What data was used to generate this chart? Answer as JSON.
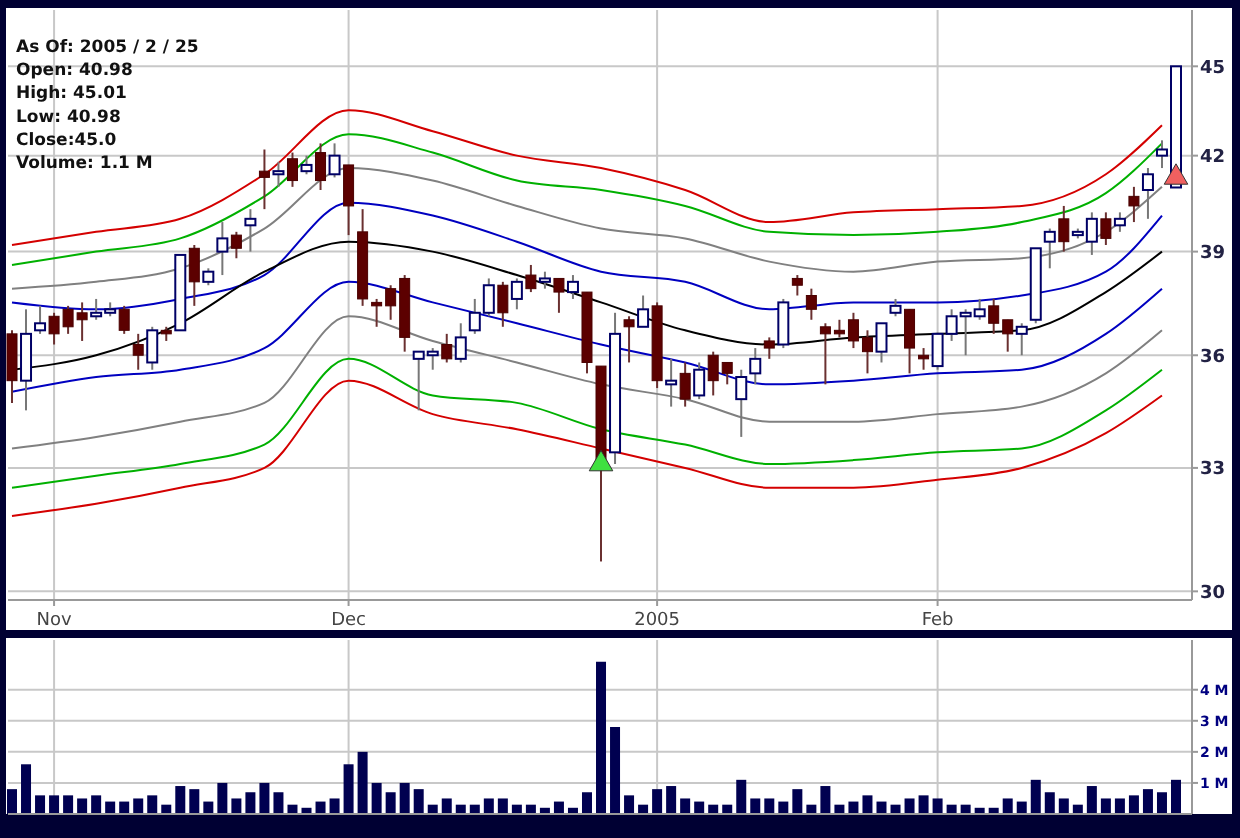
{
  "chart_data": [
    {
      "type": "candlestick",
      "annotations": [
        "As Of: 2005 / 2 / 25",
        "Open: 40.98",
        "High: 45.01",
        "Low: 40.98",
        "Close:45.0",
        "Volume: 1.1 M"
      ],
      "categories": [
        null,
        null,
        null,
        "Nov",
        null,
        null,
        null,
        null,
        null,
        null,
        null,
        null,
        null,
        null,
        null,
        null,
        null,
        null,
        null,
        null,
        null,
        null,
        null,
        null,
        "Dec",
        null,
        null,
        null,
        null,
        null,
        null,
        null,
        null,
        null,
        null,
        null,
        null,
        null,
        null,
        null,
        null,
        null,
        null,
        null,
        null,
        null,
        "2005",
        null,
        null,
        null,
        null,
        null,
        null,
        null,
        null,
        null,
        null,
        null,
        null,
        null,
        null,
        null,
        null,
        null,
        null,
        null,
        "Feb",
        null,
        null,
        null,
        null,
        null,
        null,
        null,
        null,
        null,
        null,
        null,
        null,
        null,
        null,
        null,
        null,
        null
      ],
      "ohlc": [
        [
          36.6,
          36.7,
          34.7,
          35.3
        ],
        [
          35.3,
          37.3,
          34.5,
          36.6
        ],
        [
          36.7,
          37.4,
          36.6,
          36.9
        ],
        [
          37.1,
          37.2,
          36.3,
          36.6
        ],
        [
          37.3,
          37.4,
          36.6,
          36.8
        ],
        [
          37.2,
          37.5,
          36.4,
          37.0
        ],
        [
          37.1,
          37.6,
          37.0,
          37.2
        ],
        [
          37.2,
          37.5,
          37.1,
          37.3
        ],
        [
          37.3,
          37.4,
          36.6,
          36.7
        ],
        [
          36.3,
          36.6,
          35.6,
          36.0
        ],
        [
          35.8,
          36.8,
          35.6,
          36.7
        ],
        [
          36.7,
          36.8,
          36.4,
          36.6
        ],
        [
          36.7,
          38.9,
          36.7,
          38.9
        ],
        [
          39.1,
          39.2,
          37.4,
          38.1
        ],
        [
          38.1,
          38.5,
          38.0,
          38.4
        ],
        [
          39.0,
          39.9,
          38.3,
          39.4
        ],
        [
          39.5,
          39.6,
          38.8,
          39.1
        ],
        [
          39.8,
          40.3,
          39.0,
          40.0
        ],
        [
          41.5,
          42.2,
          40.3,
          41.3
        ],
        [
          41.4,
          41.8,
          41.0,
          41.5
        ],
        [
          41.9,
          42.1,
          41.0,
          41.2
        ],
        [
          41.5,
          42.0,
          41.4,
          41.7
        ],
        [
          42.1,
          42.4,
          40.9,
          41.2
        ],
        [
          41.4,
          42.4,
          41.3,
          42.0
        ],
        [
          41.7,
          41.7,
          39.5,
          40.4
        ],
        [
          39.6,
          40.3,
          37.4,
          37.6
        ],
        [
          37.5,
          37.6,
          36.8,
          37.4
        ],
        [
          37.9,
          38.0,
          37.0,
          37.4
        ],
        [
          38.2,
          38.3,
          36.1,
          36.5
        ],
        [
          35.9,
          36.1,
          34.5,
          36.1
        ],
        [
          36.0,
          36.2,
          35.6,
          36.1
        ],
        [
          36.3,
          36.6,
          35.8,
          35.9
        ],
        [
          35.9,
          36.9,
          35.8,
          36.5
        ],
        [
          36.7,
          37.6,
          36.6,
          37.2
        ],
        [
          37.2,
          38.2,
          37.1,
          38.0
        ],
        [
          38.0,
          38.1,
          36.8,
          37.2
        ],
        [
          37.6,
          38.2,
          37.3,
          38.1
        ],
        [
          38.3,
          38.6,
          37.8,
          37.9
        ],
        [
          38.1,
          38.4,
          37.9,
          38.2
        ],
        [
          38.2,
          38.2,
          37.2,
          37.8
        ],
        [
          37.8,
          38.3,
          37.6,
          38.1
        ],
        [
          37.8,
          37.8,
          35.5,
          35.8
        ],
        [
          35.7,
          35.7,
          30.7,
          33.0
        ],
        [
          33.4,
          37.2,
          33.1,
          36.6
        ],
        [
          37.0,
          37.1,
          35.8,
          36.8
        ],
        [
          36.8,
          37.7,
          36.8,
          37.3
        ],
        [
          37.4,
          37.5,
          35.1,
          35.3
        ],
        [
          35.2,
          35.9,
          34.6,
          35.3
        ],
        [
          35.5,
          35.8,
          34.6,
          34.8
        ],
        [
          34.9,
          35.8,
          34.8,
          35.6
        ],
        [
          36.0,
          36.1,
          34.9,
          35.3
        ],
        [
          35.8,
          35.8,
          35.2,
          35.5
        ],
        [
          34.8,
          35.6,
          33.8,
          35.4
        ],
        [
          35.5,
          36.2,
          35.2,
          35.9
        ],
        [
          36.4,
          36.5,
          35.9,
          36.2
        ],
        [
          36.3,
          37.6,
          36.2,
          37.5
        ],
        [
          38.2,
          38.3,
          37.7,
          38.0
        ],
        [
          37.7,
          37.9,
          37.0,
          37.3
        ],
        [
          36.8,
          36.9,
          35.2,
          36.6
        ],
        [
          36.7,
          37.0,
          36.5,
          36.6
        ],
        [
          37.0,
          37.2,
          36.2,
          36.4
        ],
        [
          36.5,
          36.7,
          35.5,
          36.1
        ],
        [
          36.1,
          36.9,
          35.8,
          36.9
        ],
        [
          37.2,
          37.6,
          37.1,
          37.4
        ],
        [
          37.3,
          37.3,
          35.5,
          36.2
        ],
        [
          36.0,
          36.2,
          35.6,
          35.9
        ],
        [
          35.7,
          36.6,
          35.6,
          36.6
        ],
        [
          36.6,
          37.3,
          36.4,
          37.1
        ],
        [
          37.1,
          37.3,
          36.0,
          37.2
        ],
        [
          37.1,
          37.6,
          37.0,
          37.3
        ],
        [
          37.4,
          37.6,
          36.6,
          36.9
        ],
        [
          37.0,
          37.0,
          36.1,
          36.6
        ],
        [
          36.6,
          36.9,
          36.0,
          36.8
        ],
        [
          37.0,
          39.1,
          36.9,
          39.1
        ],
        [
          39.3,
          39.7,
          38.5,
          39.6
        ],
        [
          40.0,
          40.4,
          39.0,
          39.3
        ],
        [
          39.5,
          39.7,
          39.4,
          39.6
        ],
        [
          39.3,
          40.2,
          38.9,
          40.0
        ],
        [
          40.0,
          40.2,
          39.2,
          39.4
        ],
        [
          39.8,
          40.2,
          39.6,
          40.0
        ],
        [
          40.7,
          41.0,
          39.9,
          40.4
        ],
        [
          40.9,
          41.6,
          40.0,
          41.4
        ],
        [
          42.0,
          42.5,
          41.6,
          42.2
        ],
        [
          40.98,
          45.01,
          40.98,
          45.0
        ]
      ],
      "series": [
        {
          "type": "line",
          "color": "#d40000",
          "values": [
            39.2,
            null,
            null,
            null,
            null,
            null,
            39.6,
            null,
            null,
            null,
            null,
            null,
            40.0,
            null,
            null,
            null,
            null,
            null,
            41.4,
            null,
            null,
            null,
            null,
            null,
            43.5,
            null,
            null,
            null,
            null,
            null,
            42.8,
            null,
            null,
            null,
            null,
            null,
            42.0,
            null,
            null,
            null,
            null,
            null,
            41.6,
            null,
            null,
            null,
            null,
            null,
            40.9,
            null,
            null,
            null,
            null,
            null,
            39.9,
            null,
            null,
            null,
            null,
            null,
            40.2,
            null,
            null,
            null,
            null,
            null,
            40.3,
            null,
            null,
            null,
            null,
            null,
            40.4,
            null,
            null,
            null,
            null,
            null,
            41.4,
            null,
            null,
            null,
            43.0,
            null
          ]
        },
        {
          "type": "line",
          "color": "#00b000",
          "values": [
            38.6,
            null,
            null,
            null,
            null,
            null,
            39.0,
            null,
            null,
            null,
            null,
            null,
            39.4,
            null,
            null,
            null,
            null,
            null,
            40.7,
            null,
            null,
            null,
            null,
            null,
            42.7,
            null,
            null,
            null,
            null,
            null,
            42.1,
            null,
            null,
            null,
            null,
            null,
            41.2,
            null,
            null,
            null,
            null,
            null,
            40.9,
            null,
            null,
            null,
            null,
            null,
            40.4,
            null,
            null,
            null,
            null,
            null,
            39.6,
            null,
            null,
            null,
            null,
            null,
            39.5,
            null,
            null,
            null,
            null,
            null,
            39.6,
            null,
            null,
            null,
            null,
            null,
            39.9,
            null,
            null,
            null,
            null,
            null,
            40.8,
            null,
            null,
            null,
            42.4,
            null
          ]
        },
        {
          "type": "line",
          "color": "#808080",
          "values": [
            37.9,
            null,
            null,
            null,
            null,
            null,
            38.1,
            null,
            null,
            null,
            null,
            null,
            38.5,
            null,
            null,
            null,
            null,
            null,
            39.7,
            null,
            null,
            null,
            null,
            null,
            41.6,
            null,
            null,
            null,
            null,
            null,
            41.2,
            null,
            null,
            null,
            null,
            null,
            40.4,
            null,
            null,
            null,
            null,
            null,
            39.7,
            null,
            null,
            null,
            null,
            null,
            39.4,
            null,
            null,
            null,
            null,
            null,
            38.7,
            null,
            null,
            null,
            null,
            null,
            38.4,
            null,
            null,
            null,
            null,
            null,
            38.7,
            null,
            null,
            null,
            null,
            null,
            38.8,
            null,
            null,
            null,
            null,
            null,
            39.6,
            null,
            null,
            null,
            41.0,
            null
          ]
        },
        {
          "type": "line",
          "color": "#0000c0",
          "values": [
            37.5,
            null,
            null,
            null,
            null,
            null,
            37.3,
            null,
            null,
            null,
            null,
            null,
            37.6,
            null,
            null,
            null,
            null,
            null,
            38.3,
            null,
            null,
            null,
            null,
            null,
            40.5,
            null,
            null,
            null,
            null,
            null,
            40.1,
            null,
            null,
            null,
            null,
            null,
            39.3,
            null,
            null,
            null,
            null,
            null,
            38.4,
            null,
            null,
            null,
            null,
            null,
            38.1,
            null,
            null,
            null,
            null,
            null,
            37.3,
            null,
            null,
            null,
            null,
            null,
            37.5,
            null,
            null,
            null,
            null,
            null,
            37.5,
            null,
            null,
            null,
            null,
            null,
            37.7,
            null,
            null,
            null,
            null,
            null,
            38.4,
            null,
            null,
            null,
            40.1,
            null
          ]
        },
        {
          "type": "line",
          "color": "#000000",
          "values": [
            35.6,
            null,
            null,
            null,
            null,
            null,
            36.0,
            null,
            null,
            null,
            null,
            null,
            36.9,
            null,
            null,
            null,
            null,
            null,
            38.4,
            null,
            null,
            null,
            null,
            null,
            39.3,
            null,
            null,
            null,
            null,
            null,
            39.0,
            null,
            null,
            null,
            null,
            null,
            38.3,
            null,
            null,
            null,
            null,
            null,
            37.5,
            null,
            null,
            null,
            null,
            null,
            36.7,
            null,
            null,
            null,
            null,
            null,
            36.3,
            null,
            null,
            null,
            null,
            null,
            36.5,
            null,
            null,
            null,
            null,
            null,
            36.6,
            null,
            null,
            null,
            null,
            null,
            36.7,
            null,
            null,
            null,
            null,
            null,
            37.8,
            null,
            null,
            null,
            39.0,
            null
          ]
        },
        {
          "type": "line",
          "color": "#0000c0",
          "values": [
            35.0,
            null,
            null,
            null,
            null,
            null,
            35.4,
            null,
            null,
            null,
            null,
            null,
            35.6,
            null,
            null,
            null,
            null,
            null,
            36.2,
            null,
            null,
            null,
            null,
            null,
            38.1,
            null,
            null,
            null,
            null,
            null,
            37.5,
            null,
            null,
            null,
            null,
            null,
            36.9,
            null,
            null,
            null,
            null,
            null,
            36.3,
            null,
            null,
            null,
            null,
            null,
            35.8,
            null,
            null,
            null,
            null,
            null,
            35.2,
            null,
            null,
            null,
            null,
            null,
            35.3,
            null,
            null,
            null,
            null,
            null,
            35.5,
            null,
            null,
            null,
            null,
            null,
            35.6,
            null,
            null,
            null,
            null,
            null,
            36.6,
            null,
            null,
            null,
            37.9,
            null
          ]
        },
        {
          "type": "line",
          "color": "#808080",
          "values": [
            33.5,
            null,
            null,
            null,
            null,
            null,
            33.8,
            null,
            null,
            null,
            null,
            null,
            34.2,
            null,
            null,
            null,
            null,
            null,
            34.7,
            null,
            null,
            null,
            null,
            null,
            37.1,
            null,
            null,
            null,
            null,
            null,
            36.4,
            null,
            null,
            null,
            null,
            null,
            35.8,
            null,
            null,
            null,
            null,
            null,
            35.2,
            null,
            null,
            null,
            null,
            null,
            34.8,
            null,
            null,
            null,
            null,
            null,
            34.2,
            null,
            null,
            null,
            null,
            null,
            34.2,
            null,
            null,
            null,
            null,
            null,
            34.4,
            null,
            null,
            null,
            null,
            null,
            34.6,
            null,
            null,
            null,
            null,
            null,
            35.5,
            null,
            null,
            null,
            36.7,
            null
          ]
        },
        {
          "type": "line",
          "color": "#00b000",
          "values": [
            32.5,
            null,
            null,
            null,
            null,
            null,
            32.8,
            null,
            null,
            null,
            null,
            null,
            33.1,
            null,
            null,
            null,
            null,
            null,
            33.6,
            null,
            null,
            null,
            null,
            null,
            35.9,
            null,
            null,
            null,
            null,
            null,
            34.9,
            null,
            null,
            null,
            null,
            null,
            34.7,
            null,
            null,
            null,
            null,
            null,
            34.0,
            null,
            null,
            null,
            null,
            null,
            33.6,
            null,
            null,
            null,
            null,
            null,
            33.1,
            null,
            null,
            null,
            null,
            null,
            33.2,
            null,
            null,
            null,
            null,
            null,
            33.4,
            null,
            null,
            null,
            null,
            null,
            33.5,
            null,
            null,
            null,
            null,
            null,
            34.5,
            null,
            null,
            null,
            35.6,
            null
          ]
        },
        {
          "type": "line",
          "color": "#d40000",
          "values": [
            31.8,
            null,
            null,
            null,
            null,
            null,
            32.1,
            null,
            null,
            null,
            null,
            null,
            32.5,
            null,
            null,
            null,
            null,
            null,
            33.0,
            null,
            null,
            null,
            null,
            null,
            35.3,
            null,
            null,
            null,
            null,
            null,
            34.4,
            null,
            null,
            null,
            null,
            null,
            34.0,
            null,
            null,
            null,
            null,
            null,
            33.5,
            null,
            null,
            null,
            null,
            null,
            33.0,
            null,
            null,
            null,
            null,
            null,
            32.5,
            null,
            null,
            null,
            null,
            null,
            32.5,
            null,
            null,
            null,
            null,
            null,
            32.7,
            null,
            null,
            null,
            null,
            null,
            33.0,
            null,
            null,
            null,
            null,
            null,
            33.9,
            null,
            null,
            null,
            34.9,
            null
          ]
        },
        {
          "type": "scatter",
          "marker": "triangle",
          "color": "#40e040",
          "values": [
            null,
            null,
            null,
            null,
            null,
            null,
            null,
            null,
            null,
            null,
            null,
            null,
            null,
            null,
            null,
            null,
            null,
            null,
            null,
            null,
            null,
            null,
            null,
            null,
            null,
            null,
            null,
            null,
            null,
            null,
            null,
            null,
            null,
            null,
            null,
            null,
            null,
            null,
            null,
            null,
            null,
            null,
            33.1,
            null,
            null,
            null,
            null,
            null,
            null,
            null,
            null,
            null,
            null,
            null,
            null,
            null,
            null,
            null,
            null,
            null,
            null,
            null,
            null,
            null,
            null,
            null,
            null,
            null,
            null,
            null,
            null,
            null,
            null,
            null,
            null,
            null,
            null,
            null,
            null,
            null,
            null,
            null,
            null,
            null
          ]
        },
        {
          "type": "scatter",
          "marker": "triangle",
          "color": "#f06060",
          "values": [
            null,
            null,
            null,
            null,
            null,
            null,
            null,
            null,
            null,
            null,
            null,
            null,
            null,
            null,
            null,
            null,
            null,
            null,
            null,
            null,
            null,
            null,
            null,
            null,
            null,
            null,
            null,
            null,
            null,
            null,
            null,
            null,
            null,
            null,
            null,
            null,
            null,
            null,
            null,
            null,
            null,
            null,
            null,
            null,
            null,
            null,
            null,
            null,
            null,
            null,
            null,
            null,
            null,
            null,
            null,
            null,
            null,
            null,
            null,
            null,
            null,
            null,
            null,
            null,
            null,
            null,
            null,
            null,
            null,
            null,
            null,
            null,
            null,
            null,
            null,
            null,
            null,
            null,
            null,
            null,
            null,
            null,
            null,
            41.3
          ]
        }
      ],
      "ylim": [
        29.8,
        47
      ],
      "yticks": [
        30,
        33,
        36,
        39,
        42,
        45
      ],
      "log": true,
      "grid": true
    },
    {
      "type": "bar",
      "color": "#000050",
      "categories": [
        null,
        null,
        null,
        null,
        null,
        null,
        null,
        null,
        null,
        null,
        null,
        null,
        null,
        null,
        null,
        null,
        null,
        null,
        null,
        null,
        null,
        null,
        null,
        null,
        null,
        null,
        null,
        null,
        null,
        null,
        null,
        null,
        null,
        null,
        null,
        null,
        null,
        null,
        null,
        null,
        null,
        null,
        null,
        null,
        null,
        null,
        null,
        null,
        null,
        null,
        null,
        null,
        null,
        null,
        null,
        null,
        null,
        null,
        null,
        null,
        null,
        null,
        null,
        null,
        null,
        null,
        null,
        null,
        null,
        null,
        null,
        null,
        null,
        null,
        null,
        null,
        null,
        null,
        null,
        null,
        null,
        null,
        null,
        null
      ],
      "values": [
        0.8,
        1.6,
        0.6,
        0.6,
        0.6,
        0.5,
        0.6,
        0.4,
        0.4,
        0.5,
        0.6,
        0.3,
        0.9,
        0.8,
        0.4,
        1.0,
        0.5,
        0.7,
        1.0,
        0.7,
        0.3,
        0.2,
        0.4,
        0.5,
        1.6,
        2.0,
        1.0,
        0.7,
        1.0,
        0.8,
        0.3,
        0.5,
        0.3,
        0.3,
        0.5,
        0.5,
        0.3,
        0.3,
        0.2,
        0.4,
        0.2,
        0.7,
        4.9,
        2.8,
        0.6,
        0.3,
        0.8,
        0.9,
        0.5,
        0.4,
        0.3,
        0.3,
        1.1,
        0.5,
        0.5,
        0.4,
        0.8,
        0.3,
        0.9,
        0.3,
        0.4,
        0.6,
        0.4,
        0.3,
        0.5,
        0.6,
        0.5,
        0.3,
        0.3,
        0.2,
        0.2,
        0.5,
        0.4,
        1.1,
        0.7,
        0.5,
        0.3,
        0.9,
        0.5,
        0.5,
        0.6,
        0.8,
        0.7,
        1.1
      ],
      "ylim": [
        0,
        5.6
      ],
      "yticks": [
        {
          "value": 1,
          "label": "1 M"
        },
        {
          "value": 2,
          "label": "2 M"
        },
        {
          "value": 3,
          "label": "3 M"
        },
        {
          "value": 4,
          "label": "4 M"
        }
      ],
      "grid": true,
      "tick_labels": "y"
    }
  ]
}
